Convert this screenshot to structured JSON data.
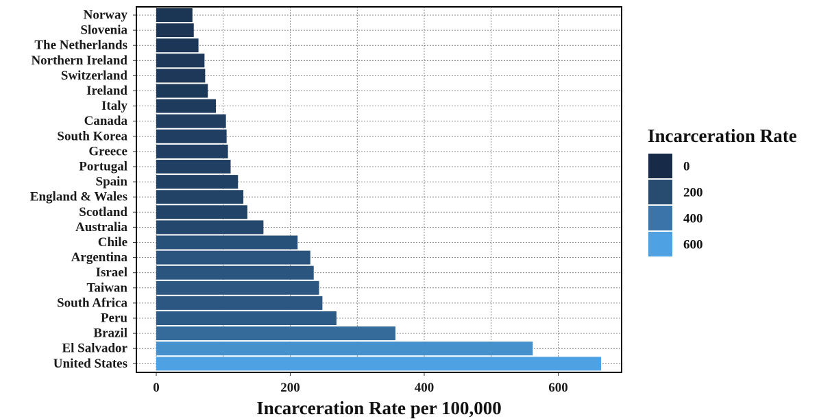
{
  "chart_data": {
    "type": "bar",
    "orientation": "horizontal",
    "xlabel": "Incarceration Rate per 100,000",
    "ylabel": "",
    "xlim": [
      0,
      680
    ],
    "x_ticks": [
      "0",
      "200",
      "400",
      "600"
    ],
    "grid": true,
    "legend": {
      "title": "Incarceration Rate",
      "placement": "right",
      "entries": [
        {
          "label": "0",
          "color": "#172b48"
        },
        {
          "label": "200",
          "color": "#274c70"
        },
        {
          "label": "400",
          "color": "#3a74a8"
        },
        {
          "label": "600",
          "color": "#4ea2e3"
        }
      ]
    },
    "categories": [
      "Norway",
      "Slovenia",
      "The Netherlands",
      "Northern Ireland",
      "Switzerland",
      "Ireland",
      "Italy",
      "Canada",
      "South Korea",
      "Greece",
      "Portugal",
      "Spain",
      "England & Wales",
      "Scotland",
      "Australia",
      "Chile",
      "Argentina",
      "Israel",
      "Taiwan",
      "South Africa",
      "Peru",
      "Brazil",
      "El Salvador",
      "United States"
    ],
    "values": [
      54,
      56,
      63,
      72,
      73,
      77,
      89,
      104,
      105,
      107,
      111,
      122,
      130,
      136,
      160,
      211,
      230,
      235,
      243,
      248,
      269,
      357,
      562,
      664
    ],
    "color_scale": {
      "min_value": 0,
      "max_value": 664,
      "low": "#172b48",
      "high": "#4ea2e3"
    }
  }
}
